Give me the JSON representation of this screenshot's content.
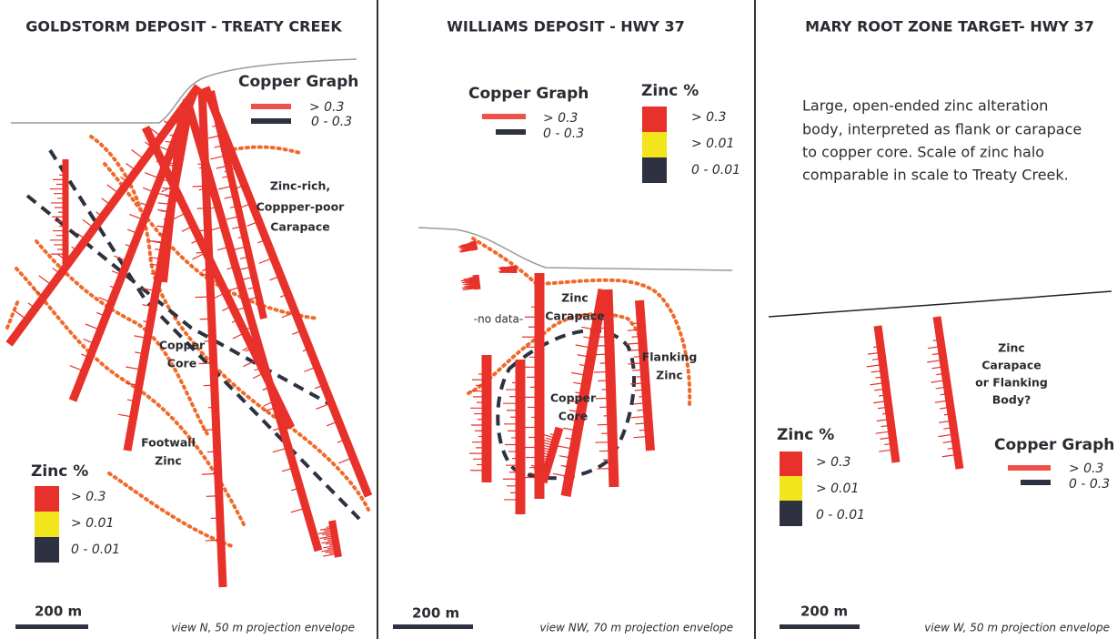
{
  "panels": [
    {
      "title": "GOLDSTORM DEPOSIT - TREATY CREEK",
      "copper_legend": {
        "title": "Copper Graph",
        "items": [
          "> 0.3",
          "0 - 0.3"
        ]
      },
      "zinc_legend": {
        "title": "Zinc %",
        "items": [
          "> 0.3",
          "> 0.01",
          "0 - 0.01"
        ]
      },
      "annotations": [
        {
          "lines": [
            "Zinc-rich,",
            "Coppper-poor",
            "Carapace"
          ]
        },
        {
          "lines": [
            "Copper",
            "Core"
          ]
        },
        {
          "lines": [
            "Footwall",
            "Zinc"
          ]
        }
      ],
      "scale_bar": "200 m",
      "caption": "view N, 50 m projection envelope"
    },
    {
      "title": "WILLIAMS DEPOSIT - HWY 37",
      "copper_legend": {
        "title": "Copper Graph",
        "items": [
          "> 0.3",
          "0 - 0.3"
        ]
      },
      "zinc_legend": {
        "title": "Zinc %",
        "items": [
          "> 0.3",
          "> 0.01",
          "0 - 0.01"
        ]
      },
      "annotations": [
        {
          "lines": [
            "-no data-"
          ]
        },
        {
          "lines": [
            "Zinc",
            "Carapace"
          ]
        },
        {
          "lines": [
            "Copper",
            "Core"
          ]
        },
        {
          "lines": [
            "Flanking",
            "Zinc"
          ]
        }
      ],
      "scale_bar": "200 m",
      "caption": "view NW, 70 m projection envelope"
    },
    {
      "title": "MARY ROOT ZONE TARGET- HWY 37",
      "description": [
        "Large, open-ended zinc alteration",
        "body, interpreted as flank or carapace",
        "to copper core. Scale of zinc halo",
        "comparable in scale to Treaty Creek."
      ],
      "copper_legend": {
        "title": "Copper Graph",
        "items": [
          "> 0.3",
          "0 - 0.3"
        ]
      },
      "zinc_legend": {
        "title": "Zinc %",
        "items": [
          "> 0.3",
          "> 0.01",
          "0 - 0.01"
        ]
      },
      "annotations": [
        {
          "lines": [
            "Zinc",
            "Carapace",
            "or Flanking",
            "Body?"
          ]
        }
      ],
      "scale_bar": "200 m",
      "caption": "view W, 50 m projection envelope"
    }
  ]
}
